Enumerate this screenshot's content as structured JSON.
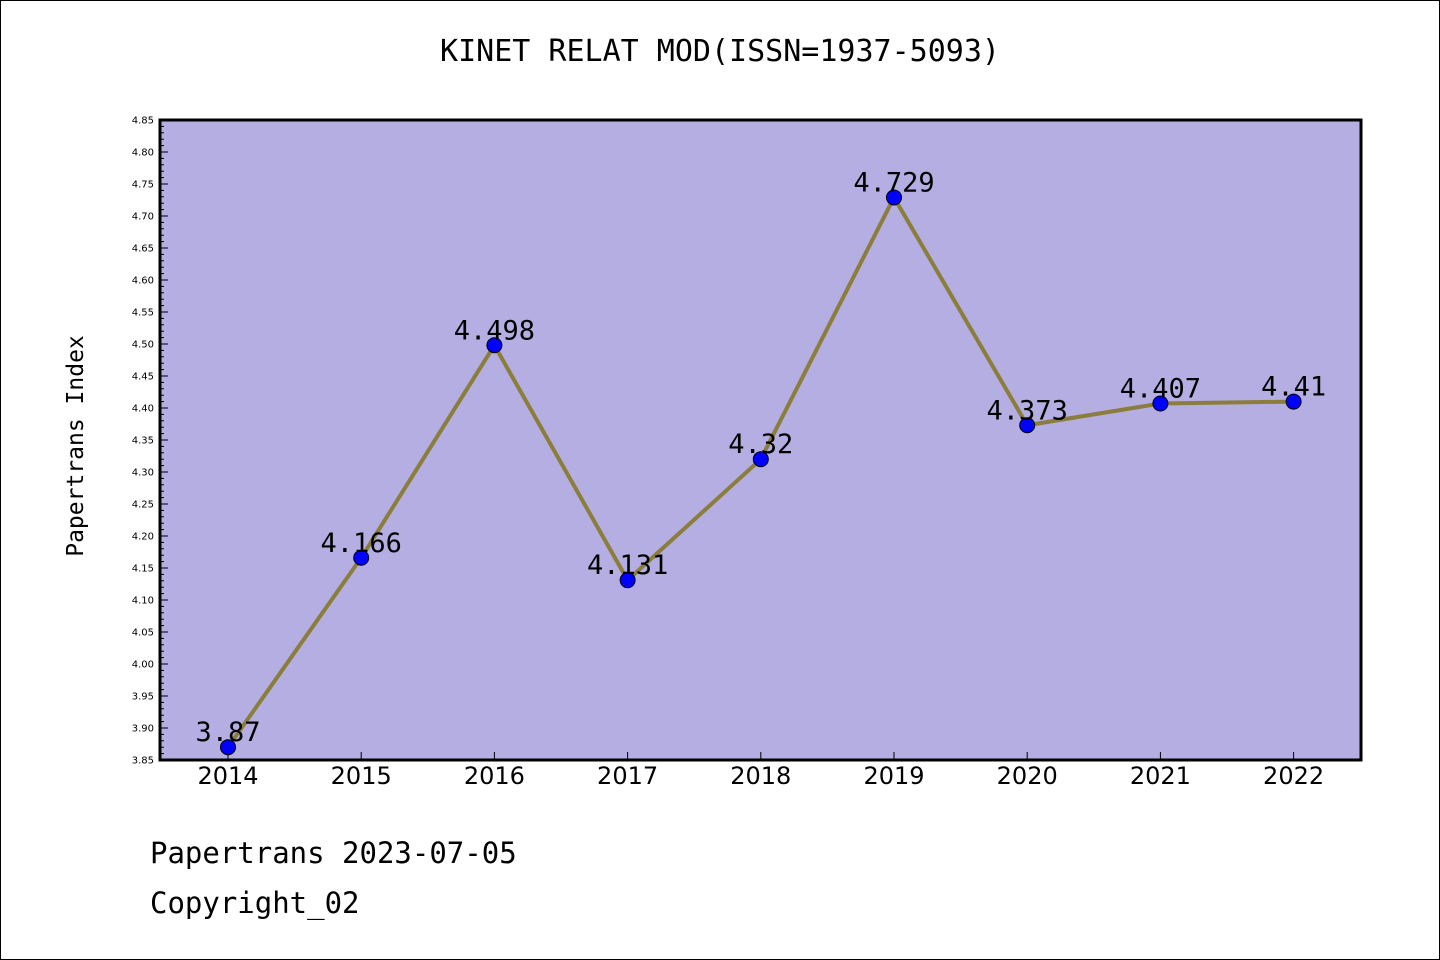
{
  "header": {
    "title": "KINET RELAT MOD(ISSN=1937-5093)"
  },
  "footer": {
    "line1": "Papertrans 2023-07-05",
    "line2": "Copyright_02"
  },
  "colors": {
    "plot_background": "#b4aee2",
    "line": "#8b7d3a",
    "marker": "#0000ff"
  },
  "chart_data": {
    "type": "line",
    "title": "KINET RELAT MOD(ISSN=1937-5093)",
    "xlabel": "",
    "ylabel": "Papertrans Index",
    "categories": [
      "2014",
      "2015",
      "2016",
      "2017",
      "2018",
      "2019",
      "2020",
      "2021",
      "2022"
    ],
    "series": [
      {
        "values": [
          3.87,
          4.166,
          4.498,
          4.131,
          4.32,
          4.729,
          4.373,
          4.407,
          4.41
        ],
        "labels": [
          "3.87",
          "4.166",
          "4.498",
          "4.131",
          "4.32",
          "4.729",
          "4.373",
          "4.407",
          "4.41"
        ]
      }
    ],
    "ylim": [
      3.85,
      4.85
    ],
    "yticks": [
      "3.85",
      "3.90",
      "3.95",
      "4.00",
      "4.05",
      "4.10",
      "4.15",
      "4.20",
      "4.25",
      "4.30",
      "4.35",
      "4.40",
      "4.45",
      "4.50",
      "4.55",
      "4.60",
      "4.65",
      "4.70",
      "4.75",
      "4.80",
      "4.85"
    ],
    "grid": false,
    "legend": "none"
  }
}
